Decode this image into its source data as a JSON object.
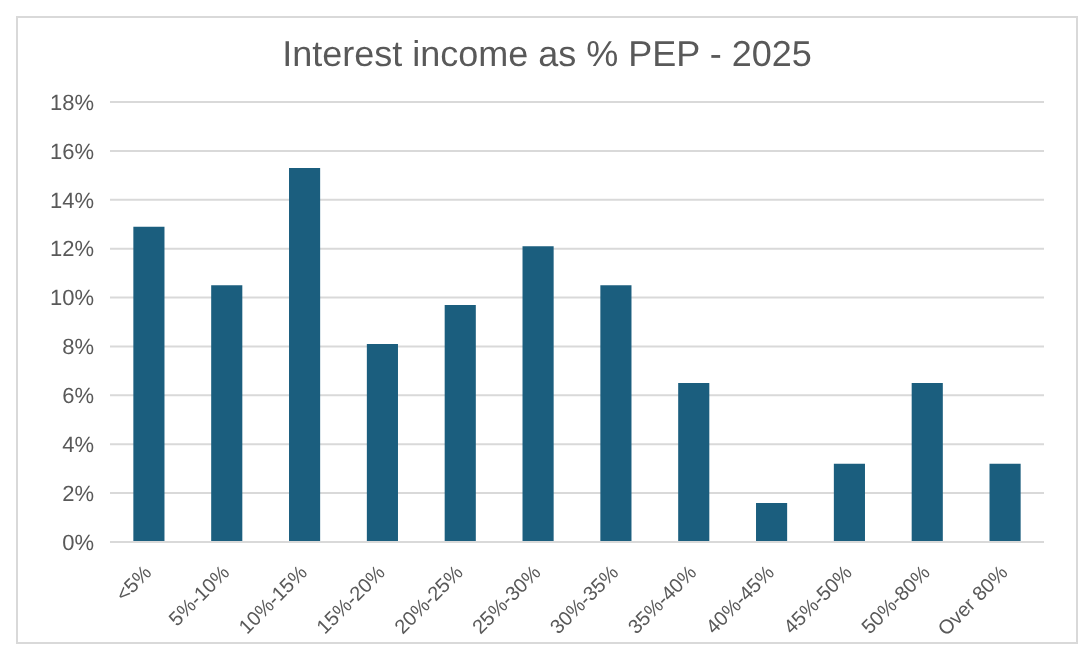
{
  "chart_data": {
    "type": "bar",
    "title": "Interest income as % PEP - 2025",
    "categories": [
      "<5%",
      "5%-10%",
      "10%-15%",
      "15%-20%",
      "20%-25%",
      "25%-30%",
      "30%-35%",
      "35%-40%",
      "40%-45%",
      "45%-50%",
      "50%-80%",
      "Over 80%"
    ],
    "values": [
      12.9,
      10.5,
      15.3,
      8.1,
      9.7,
      12.1,
      10.5,
      6.5,
      1.6,
      3.2,
      6.5,
      3.2
    ],
    "color": "#1b5e7e",
    "ylim": [
      0,
      18
    ],
    "yticks": [
      {
        "value": 0,
        "label": "0%"
      },
      {
        "value": 2,
        "label": "2%"
      },
      {
        "value": 4,
        "label": "4%"
      },
      {
        "value": 6,
        "label": "6%"
      },
      {
        "value": 8,
        "label": "8%"
      },
      {
        "value": 10,
        "label": "10%"
      },
      {
        "value": 12,
        "label": "12%"
      },
      {
        "value": 14,
        "label": "14%"
      },
      {
        "value": 16,
        "label": "16%"
      },
      {
        "value": 18,
        "label": "18%"
      }
    ],
    "grid": "y"
  }
}
